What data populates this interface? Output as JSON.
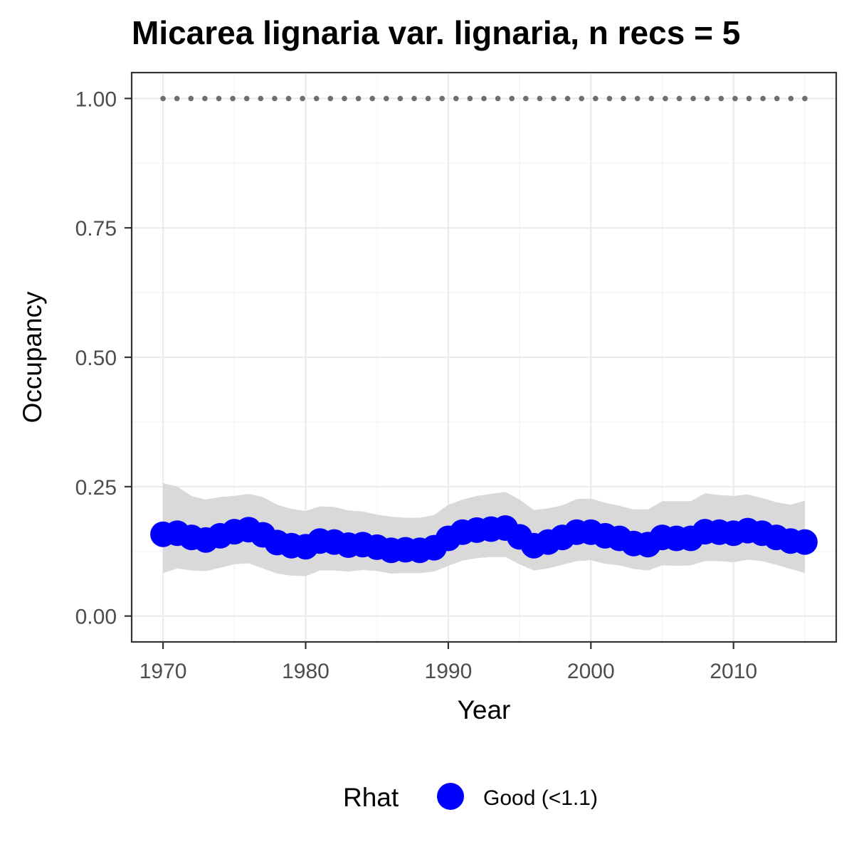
{
  "chart_data": {
    "type": "line",
    "title": "Micarea lignaria var. lignaria, n recs = 5",
    "xlabel": "Year",
    "ylabel": "Occupancy",
    "xlim": [
      1967.8,
      2017.2
    ],
    "ylim": [
      -0.05,
      1.05
    ],
    "x_ticks": [
      1970,
      1980,
      1990,
      2000,
      2010
    ],
    "x_tick_labels": [
      "1970",
      "1980",
      "1990",
      "2000",
      "2010"
    ],
    "y_ticks": [
      0,
      0.25,
      0.5,
      0.75,
      1
    ],
    "y_tick_labels": [
      "0.00",
      "0.25",
      "0.50",
      "0.75",
      "1.00"
    ],
    "grid": true,
    "legend": {
      "position": "bottom",
      "title": "Rhat",
      "entries": [
        {
          "label": "Good (<1.1)",
          "color": "#0000ff"
        }
      ]
    },
    "x": [
      1970,
      1971,
      1972,
      1973,
      1974,
      1975,
      1976,
      1977,
      1978,
      1979,
      1980,
      1981,
      1982,
      1983,
      1984,
      1985,
      1986,
      1987,
      1988,
      1989,
      1990,
      1991,
      1992,
      1993,
      1994,
      1995,
      1996,
      1997,
      1998,
      1999,
      2000,
      2001,
      2002,
      2003,
      2004,
      2005,
      2006,
      2007,
      2008,
      2009,
      2010,
      2011,
      2012,
      2013,
      2014,
      2015
    ],
    "series": [
      {
        "role": "mean",
        "color": "#0000ff",
        "values": [
          0.158,
          0.16,
          0.152,
          0.147,
          0.155,
          0.163,
          0.167,
          0.157,
          0.142,
          0.136,
          0.134,
          0.145,
          0.143,
          0.137,
          0.138,
          0.133,
          0.127,
          0.128,
          0.127,
          0.132,
          0.15,
          0.162,
          0.166,
          0.168,
          0.17,
          0.153,
          0.136,
          0.143,
          0.152,
          0.162,
          0.162,
          0.155,
          0.15,
          0.14,
          0.138,
          0.152,
          0.15,
          0.15,
          0.163,
          0.162,
          0.16,
          0.165,
          0.16,
          0.152,
          0.145,
          0.143
        ]
      },
      {
        "role": "upper_ci",
        "color": "#d9d9d9",
        "values": [
          0.257,
          0.25,
          0.232,
          0.225,
          0.23,
          0.232,
          0.236,
          0.23,
          0.215,
          0.207,
          0.203,
          0.212,
          0.211,
          0.204,
          0.202,
          0.196,
          0.192,
          0.19,
          0.19,
          0.195,
          0.215,
          0.225,
          0.232,
          0.236,
          0.24,
          0.225,
          0.205,
          0.208,
          0.214,
          0.226,
          0.227,
          0.219,
          0.213,
          0.206,
          0.206,
          0.222,
          0.222,
          0.222,
          0.237,
          0.234,
          0.232,
          0.235,
          0.228,
          0.22,
          0.215,
          0.223
        ]
      },
      {
        "role": "lower_ci",
        "color": "#d9d9d9",
        "values": [
          0.083,
          0.092,
          0.088,
          0.087,
          0.093,
          0.1,
          0.102,
          0.092,
          0.082,
          0.078,
          0.077,
          0.088,
          0.088,
          0.086,
          0.089,
          0.087,
          0.082,
          0.083,
          0.083,
          0.086,
          0.097,
          0.107,
          0.112,
          0.114,
          0.114,
          0.1,
          0.088,
          0.092,
          0.099,
          0.106,
          0.108,
          0.101,
          0.098,
          0.091,
          0.088,
          0.098,
          0.097,
          0.098,
          0.106,
          0.106,
          0.104,
          0.109,
          0.106,
          0.099,
          0.091,
          0.083
        ]
      },
      {
        "role": "reference_line",
        "color": "#6e6e6e",
        "values": [
          1,
          1,
          1,
          1,
          1,
          1,
          1,
          1,
          1,
          1,
          1,
          1,
          1,
          1,
          1,
          1,
          1,
          1,
          1,
          1,
          1,
          1,
          1,
          1,
          1,
          1,
          1,
          1,
          1,
          1,
          1,
          1,
          1,
          1,
          1,
          1,
          1,
          1,
          1,
          1,
          1,
          1,
          1,
          1,
          1,
          1
        ]
      }
    ]
  }
}
